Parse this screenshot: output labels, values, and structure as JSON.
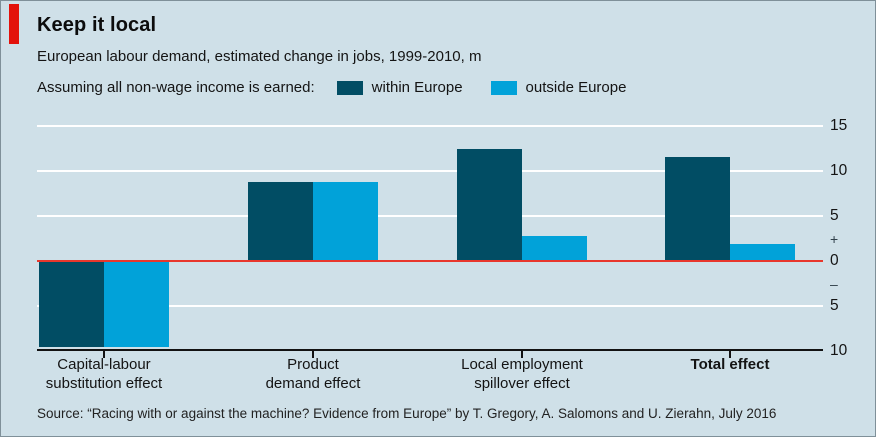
{
  "header": {
    "title": "Keep it local",
    "subtitle": "European labour demand, estimated change in jobs, 1999-2010, m",
    "accent_color": "#e3120b"
  },
  "legend": {
    "prefix": "Assuming all non-wage income is earned:",
    "items": [
      {
        "label": "within Europe",
        "color": "#014d64"
      },
      {
        "label": "outside Europe",
        "color": "#01a2d9"
      }
    ]
  },
  "chart_data": {
    "type": "bar",
    "title": "Keep it local",
    "subtitle": "European labour demand, estimated change in jobs, 1999-2010, m",
    "unit": "million jobs",
    "categories": [
      {
        "lines": [
          "Capital-labour",
          "substitution effect"
        ],
        "bold": false
      },
      {
        "lines": [
          "Product",
          "demand effect"
        ],
        "bold": false
      },
      {
        "lines": [
          "Local employment",
          "spillover effect"
        ],
        "bold": false
      },
      {
        "lines": [
          "Total effect"
        ],
        "bold": true
      }
    ],
    "series": [
      {
        "name": "within Europe",
        "color": "#014d64",
        "values": [
          -9.6,
          8.8,
          12.5,
          11.6
        ]
      },
      {
        "name": "outside Europe",
        "color": "#01a2d9",
        "values": [
          -9.6,
          8.8,
          2.8,
          1.9
        ]
      }
    ],
    "ylim": [
      -10,
      15
    ],
    "gridlines": [
      15,
      10,
      5,
      0,
      -5,
      -10
    ],
    "grid_color": "#ffffff",
    "zero_line_color": "#e8372c",
    "axis_line_color": "#121212",
    "legend_position": "top",
    "axis_side": "right",
    "right_axis_labels": [
      {
        "text": "15",
        "v": 15,
        "sign": false
      },
      {
        "text": "10",
        "v": 10,
        "sign": false
      },
      {
        "text": "5",
        "v": 5,
        "sign": false
      },
      {
        "text": "+",
        "v": 2.4,
        "sign": true
      },
      {
        "text": "0",
        "v": 0,
        "sign": false
      },
      {
        "text": "–",
        "v": -2.6,
        "sign": true
      },
      {
        "text": "5",
        "v": -5,
        "sign": false
      },
      {
        "text": "10",
        "v": -10,
        "sign": false
      }
    ]
  },
  "source": "Source: “Racing with or against the machine? Evidence from Europe” by T. Gregory, A. Salomons and U. Zierahn, July 2016"
}
